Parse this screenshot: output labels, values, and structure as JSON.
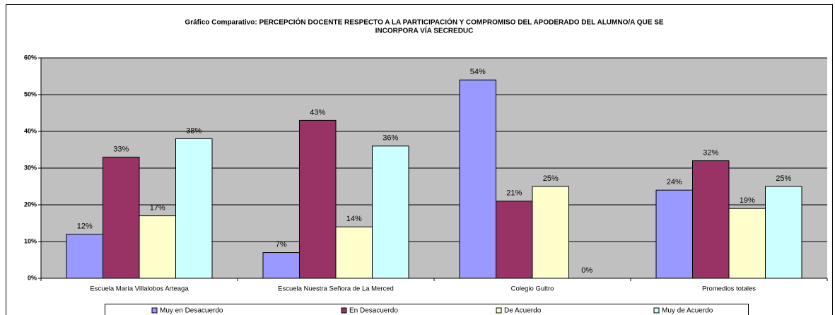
{
  "chart_data": {
    "type": "bar",
    "title": [
      "Gráfico Comparativo: PERCEPCIÓN DOCENTE RESPECTO A LA PARTICIPACIÓN Y COMPROMISO DEL APODERADO DEL ALUMNO/A QUE SE",
      "INCORPORA VÍA SECREDUC"
    ],
    "categories": [
      "Escuela María Villalobos Arteaga",
      "Escuela Nuestra Señora de La Merced",
      "Colegio Gultro",
      "Promedios totales"
    ],
    "series": [
      {
        "name": "Muy en Desacuerdo",
        "color": "#9999ff",
        "values": [
          12,
          7,
          54,
          24
        ],
        "value_labels": [
          "12%",
          "7%",
          "54%",
          "24%"
        ]
      },
      {
        "name": "En Desacuerdo",
        "color": "#993366",
        "values": [
          33,
          43,
          21,
          32
        ],
        "value_labels": [
          "33%",
          "43%",
          "21%",
          "32%"
        ]
      },
      {
        "name": "De Acuerdo",
        "color": "#ffffcc",
        "values": [
          17,
          14,
          25,
          19
        ],
        "value_labels": [
          "17%",
          "14%",
          "25%",
          "19%"
        ]
      },
      {
        "name": "Muy  de Acuerdo",
        "color": "#ccffff",
        "values": [
          38,
          36,
          0,
          25
        ],
        "value_labels": [
          "38%",
          "36%",
          "0%",
          "25%"
        ]
      }
    ],
    "ylim": [
      0,
      60
    ],
    "yticks": [
      {
        "value": 0,
        "label": "0%"
      },
      {
        "value": 10,
        "label": "10%"
      },
      {
        "value": 20,
        "label": "20%"
      },
      {
        "value": 30,
        "label": "30%"
      },
      {
        "value": 40,
        "label": "40%"
      },
      {
        "value": 50,
        "label": "50%"
      },
      {
        "value": 60,
        "label": "60%"
      }
    ],
    "grid": true,
    "legend": "bottom"
  }
}
